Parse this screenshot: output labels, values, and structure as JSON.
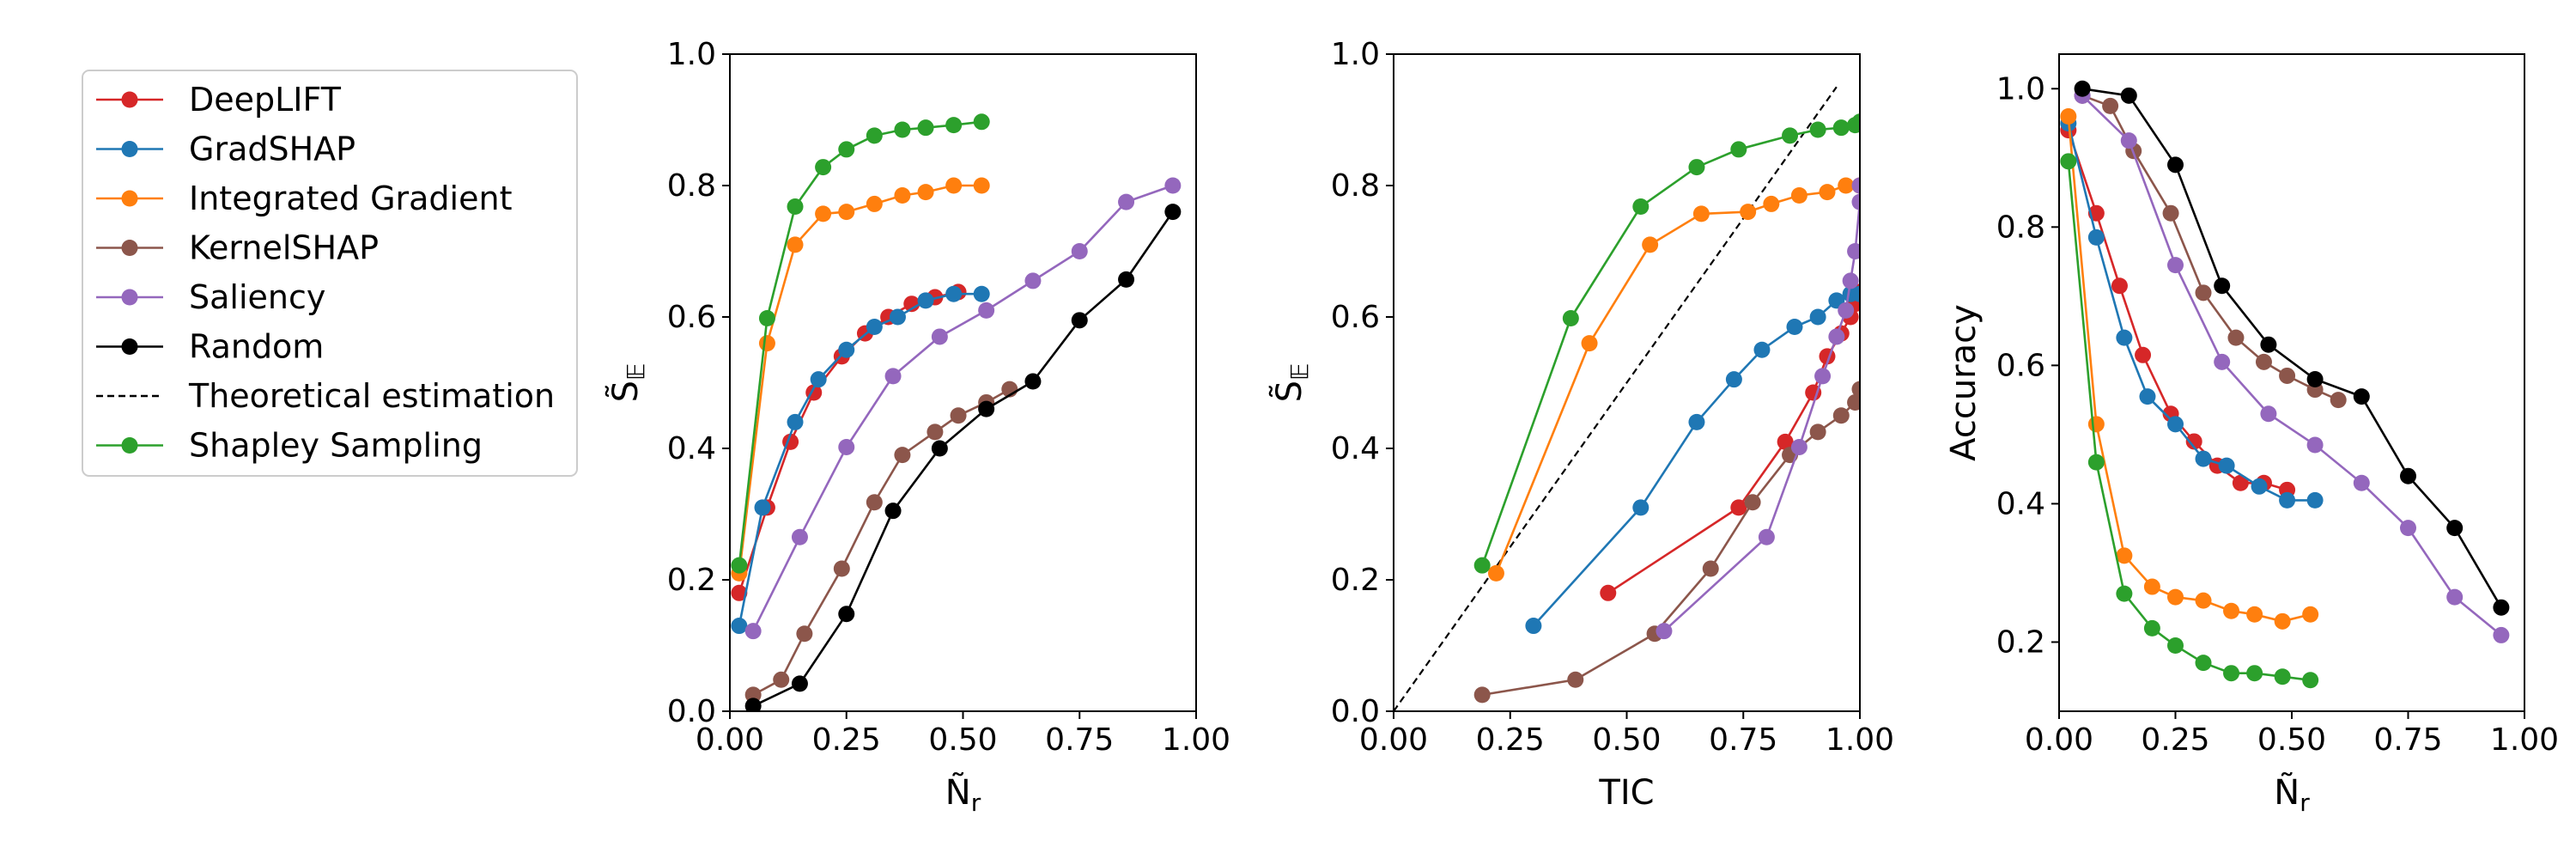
{
  "legend": {
    "entries": [
      {
        "label": "DeepLIFT",
        "color": "#d62728",
        "style": "marker"
      },
      {
        "label": "GradSHAP",
        "color": "#1f77b4",
        "style": "marker"
      },
      {
        "label": "Integrated Gradient",
        "color": "#ff7f0e",
        "style": "marker"
      },
      {
        "label": "KernelSHAP",
        "color": "#8c564b",
        "style": "marker"
      },
      {
        "label": "Saliency",
        "color": "#9467bd",
        "style": "marker"
      },
      {
        "label": "Random",
        "color": "#000000",
        "style": "marker"
      },
      {
        "label": "Theoretical estimation",
        "color": "#000000",
        "style": "dashed"
      },
      {
        "label": "Shapley Sampling",
        "color": "#2ca02c",
        "style": "marker"
      }
    ]
  },
  "chart_data": [
    {
      "type": "line",
      "xlabel": "Ñ",
      "xlabel_sub": "r",
      "ylabel": "S̃",
      "ylabel_sub": "𝔼",
      "xlim": [
        0,
        1
      ],
      "ylim": [
        0,
        1
      ],
      "xticks": [
        "0.00",
        "0.25",
        "0.50",
        "0.75",
        "1.00"
      ],
      "xtick_values": [
        0,
        0.25,
        0.5,
        0.75,
        1
      ],
      "yticks": [
        "0.0",
        "0.2",
        "0.4",
        "0.6",
        "0.8",
        "1.0"
      ],
      "ytick_values": [
        0,
        0.2,
        0.4,
        0.6,
        0.8,
        1.0
      ],
      "series": [
        {
          "name": "DeepLIFT",
          "color": "#d62728",
          "x": [
            0.02,
            0.08,
            0.13,
            0.18,
            0.24,
            0.29,
            0.34,
            0.39,
            0.44,
            0.49
          ],
          "y": [
            0.18,
            0.31,
            0.41,
            0.485,
            0.54,
            0.575,
            0.6,
            0.62,
            0.63,
            0.638
          ]
        },
        {
          "name": "GradSHAP",
          "color": "#1f77b4",
          "x": [
            0.02,
            0.07,
            0.14,
            0.19,
            0.25,
            0.31,
            0.36,
            0.42,
            0.48,
            0.54
          ],
          "y": [
            0.13,
            0.31,
            0.44,
            0.505,
            0.55,
            0.585,
            0.6,
            0.625,
            0.635,
            0.635
          ]
        },
        {
          "name": "Integrated Gradient",
          "color": "#ff7f0e",
          "x": [
            0.02,
            0.08,
            0.14,
            0.2,
            0.25,
            0.31,
            0.37,
            0.42,
            0.48,
            0.54
          ],
          "y": [
            0.21,
            0.56,
            0.71,
            0.757,
            0.76,
            0.772,
            0.785,
            0.79,
            0.8,
            0.8
          ]
        },
        {
          "name": "KernelSHAP",
          "color": "#8c564b",
          "x": [
            0.05,
            0.11,
            0.16,
            0.24,
            0.31,
            0.37,
            0.44,
            0.49,
            0.55,
            0.6
          ],
          "y": [
            0.025,
            0.048,
            0.118,
            0.217,
            0.318,
            0.39,
            0.425,
            0.45,
            0.47,
            0.49
          ]
        },
        {
          "name": "Saliency",
          "color": "#9467bd",
          "x": [
            0.05,
            0.15,
            0.25,
            0.35,
            0.45,
            0.55,
            0.65,
            0.75,
            0.85,
            0.95
          ],
          "y": [
            0.122,
            0.265,
            0.402,
            0.51,
            0.57,
            0.61,
            0.655,
            0.7,
            0.775,
            0.8
          ]
        },
        {
          "name": "Random",
          "color": "#000000",
          "x": [
            0.05,
            0.15,
            0.25,
            0.35,
            0.45,
            0.55,
            0.65,
            0.75,
            0.85,
            0.95
          ],
          "y": [
            0.008,
            0.042,
            0.148,
            0.305,
            0.4,
            0.46,
            0.502,
            0.595,
            0.657,
            0.76
          ]
        },
        {
          "name": "Shapley Sampling",
          "color": "#2ca02c",
          "x": [
            0.02,
            0.08,
            0.14,
            0.2,
            0.25,
            0.31,
            0.37,
            0.42,
            0.48,
            0.54
          ],
          "y": [
            0.222,
            0.598,
            0.768,
            0.828,
            0.855,
            0.876,
            0.885,
            0.888,
            0.892,
            0.897
          ]
        }
      ]
    },
    {
      "type": "line",
      "xlabel": "TIC",
      "xlabel_sub": "",
      "ylabel": "S̃",
      "ylabel_sub": "𝔼",
      "xlim": [
        0,
        1
      ],
      "ylim": [
        0,
        1
      ],
      "xticks": [
        "0.00",
        "0.25",
        "0.50",
        "0.75",
        "1.00"
      ],
      "xtick_values": [
        0,
        0.25,
        0.5,
        0.75,
        1
      ],
      "yticks": [
        "0.0",
        "0.2",
        "0.4",
        "0.6",
        "0.8",
        "1.0"
      ],
      "ytick_values": [
        0,
        0.2,
        0.4,
        0.6,
        0.8,
        1.0
      ],
      "reference_line": {
        "name": "Theoretical estimation",
        "x": [
          0,
          0.95
        ],
        "y": [
          0,
          0.95
        ]
      },
      "series": [
        {
          "name": "DeepLIFT",
          "color": "#d62728",
          "x": [
            0.46,
            0.74,
            0.84,
            0.9,
            0.93,
            0.96,
            0.98,
            0.99,
            1.0,
            1.0
          ],
          "y": [
            0.18,
            0.31,
            0.41,
            0.485,
            0.54,
            0.575,
            0.6,
            0.62,
            0.63,
            0.638
          ]
        },
        {
          "name": "GradSHAP",
          "color": "#1f77b4",
          "x": [
            0.3,
            0.53,
            0.65,
            0.73,
            0.79,
            0.86,
            0.91,
            0.95,
            0.98,
            1.0
          ],
          "y": [
            0.13,
            0.31,
            0.44,
            0.505,
            0.55,
            0.585,
            0.6,
            0.625,
            0.635,
            0.635
          ]
        },
        {
          "name": "Integrated Gradient",
          "color": "#ff7f0e",
          "x": [
            0.22,
            0.42,
            0.55,
            0.66,
            0.76,
            0.81,
            0.87,
            0.93,
            0.97,
            1.0
          ],
          "y": [
            0.21,
            0.56,
            0.71,
            0.757,
            0.76,
            0.772,
            0.785,
            0.79,
            0.8,
            0.8
          ]
        },
        {
          "name": "KernelSHAP",
          "color": "#8c564b",
          "x": [
            0.19,
            0.39,
            0.56,
            0.68,
            0.77,
            0.85,
            0.91,
            0.96,
            0.99,
            1.0
          ],
          "y": [
            0.025,
            0.048,
            0.118,
            0.217,
            0.318,
            0.39,
            0.425,
            0.45,
            0.47,
            0.49
          ]
        },
        {
          "name": "Saliency",
          "color": "#9467bd",
          "x": [
            0.58,
            0.8,
            0.87,
            0.92,
            0.95,
            0.97,
            0.98,
            0.99,
            1.0,
            1.0
          ],
          "y": [
            0.122,
            0.265,
            0.402,
            0.51,
            0.57,
            0.61,
            0.655,
            0.7,
            0.775,
            0.8
          ]
        },
        {
          "name": "Shapley Sampling",
          "color": "#2ca02c",
          "x": [
            0.19,
            0.38,
            0.53,
            0.65,
            0.74,
            0.85,
            0.91,
            0.96,
            0.99,
            1.0
          ],
          "y": [
            0.222,
            0.598,
            0.768,
            0.828,
            0.855,
            0.876,
            0.885,
            0.888,
            0.892,
            0.897
          ]
        }
      ]
    },
    {
      "type": "line",
      "xlabel": "Ñ",
      "xlabel_sub": "r",
      "ylabel": "Accuracy",
      "ylabel_sub": "",
      "xlim": [
        0,
        1
      ],
      "ylim": [
        0.1,
        1.05
      ],
      "xticks": [
        "0.00",
        "0.25",
        "0.50",
        "0.75",
        "1.00"
      ],
      "xtick_values": [
        0,
        0.25,
        0.5,
        0.75,
        1
      ],
      "yticks": [
        "0.2",
        "0.4",
        "0.6",
        "0.8",
        "1.0"
      ],
      "ytick_values": [
        0.2,
        0.4,
        0.6,
        0.8,
        1.0
      ],
      "series": [
        {
          "name": "DeepLIFT",
          "color": "#d62728",
          "x": [
            0.02,
            0.08,
            0.13,
            0.18,
            0.24,
            0.29,
            0.34,
            0.39,
            0.44,
            0.49
          ],
          "y": [
            0.94,
            0.82,
            0.715,
            0.615,
            0.53,
            0.49,
            0.455,
            0.43,
            0.43,
            0.42
          ]
        },
        {
          "name": "GradSHAP",
          "color": "#1f77b4",
          "x": [
            0.02,
            0.08,
            0.14,
            0.19,
            0.25,
            0.31,
            0.36,
            0.43,
            0.49,
            0.55
          ],
          "y": [
            0.95,
            0.785,
            0.64,
            0.555,
            0.515,
            0.465,
            0.455,
            0.425,
            0.405,
            0.405
          ]
        },
        {
          "name": "Integrated Gradient",
          "color": "#ff7f0e",
          "x": [
            0.02,
            0.08,
            0.14,
            0.2,
            0.25,
            0.31,
            0.37,
            0.42,
            0.48,
            0.54
          ],
          "y": [
            0.96,
            0.515,
            0.325,
            0.28,
            0.265,
            0.26,
            0.245,
            0.24,
            0.23,
            0.24
          ]
        },
        {
          "name": "KernelSHAP",
          "color": "#8c564b",
          "x": [
            0.05,
            0.11,
            0.16,
            0.24,
            0.31,
            0.38,
            0.44,
            0.49,
            0.55,
            0.6
          ],
          "y": [
            0.99,
            0.975,
            0.91,
            0.82,
            0.705,
            0.64,
            0.605,
            0.585,
            0.565,
            0.55
          ]
        },
        {
          "name": "Saliency",
          "color": "#9467bd",
          "x": [
            0.05,
            0.15,
            0.25,
            0.35,
            0.45,
            0.55,
            0.65,
            0.75,
            0.85,
            0.95
          ],
          "y": [
            0.99,
            0.925,
            0.745,
            0.605,
            0.53,
            0.485,
            0.43,
            0.365,
            0.265,
            0.21
          ]
        },
        {
          "name": "Random",
          "color": "#000000",
          "x": [
            0.05,
            0.15,
            0.25,
            0.35,
            0.45,
            0.55,
            0.65,
            0.75,
            0.85,
            0.95
          ],
          "y": [
            1.0,
            0.99,
            0.89,
            0.715,
            0.63,
            0.58,
            0.555,
            0.44,
            0.365,
            0.25
          ]
        },
        {
          "name": "Shapley Sampling",
          "color": "#2ca02c",
          "x": [
            0.02,
            0.08,
            0.14,
            0.2,
            0.25,
            0.31,
            0.37,
            0.42,
            0.48,
            0.54
          ],
          "y": [
            0.895,
            0.46,
            0.27,
            0.22,
            0.195,
            0.17,
            0.155,
            0.155,
            0.15,
            0.145
          ]
        }
      ]
    }
  ]
}
